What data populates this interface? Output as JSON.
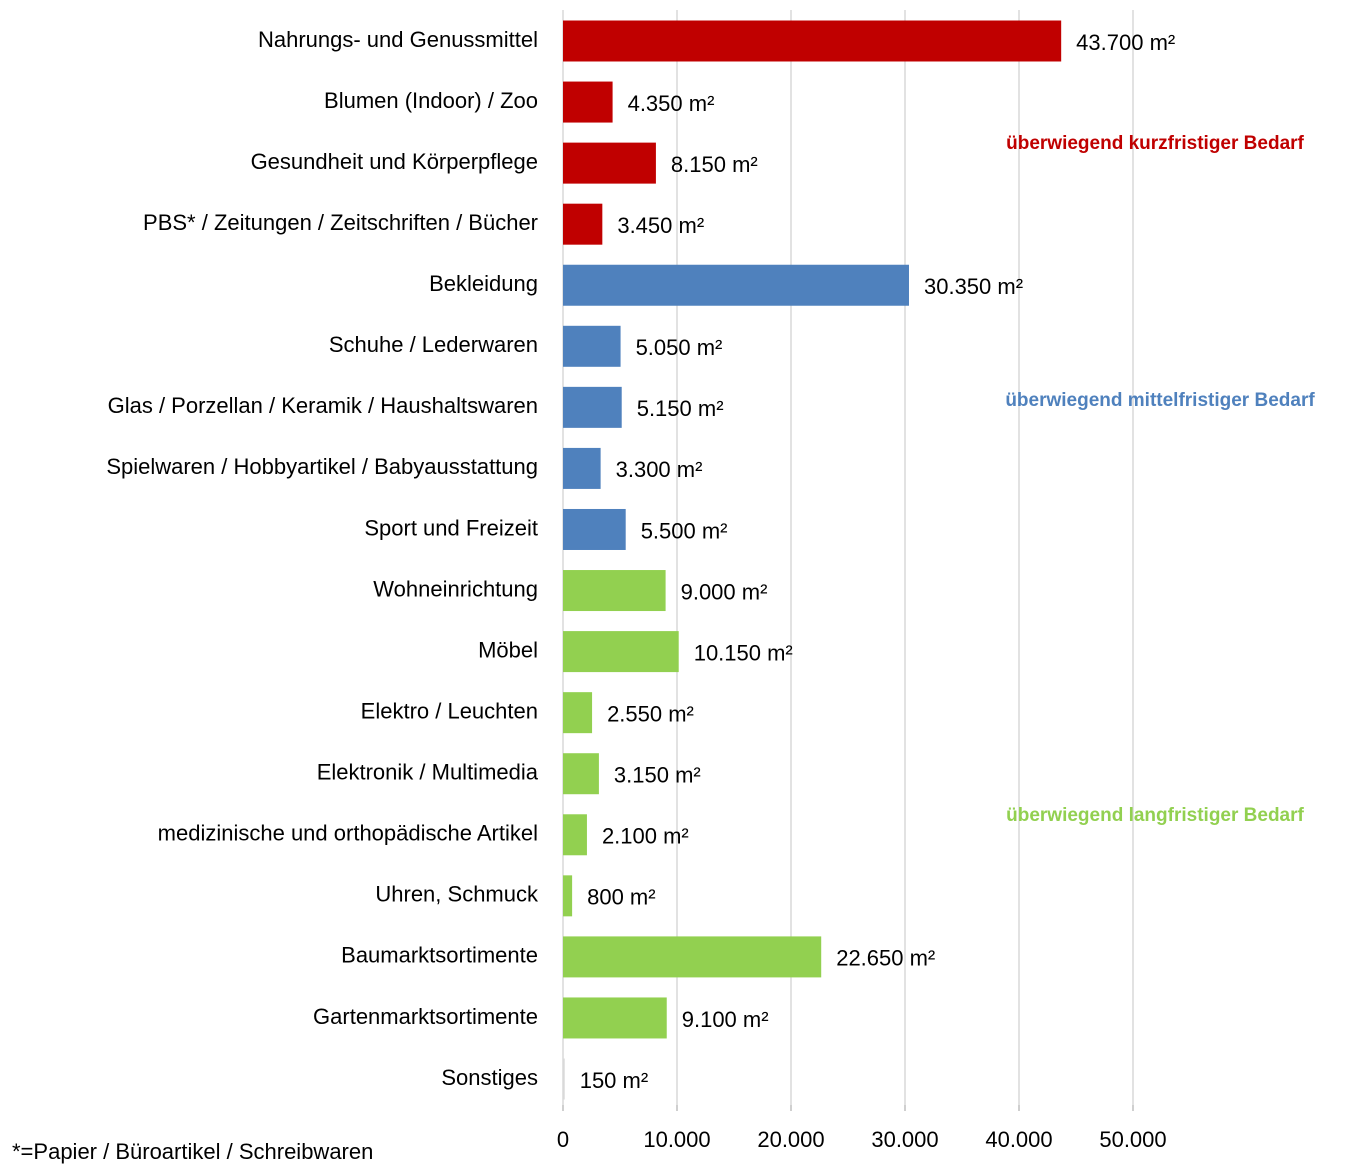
{
  "chart_data": {
    "type": "hbar",
    "categories": [
      "Nahrungs- und Genussmittel",
      "Blumen (Indoor) / Zoo",
      "Gesundheit und Körperpflege",
      "PBS* / Zeitungen / Zeitschriften / Bücher",
      "Bekleidung",
      "Schuhe / Lederwaren",
      "Glas / Porzellan / Keramik / Haushaltswaren",
      "Spielwaren / Hobbyartikel / Babyausstattung",
      "Sport und Freizeit",
      "Wohneinrichtung",
      "Möbel",
      "Elektro / Leuchten",
      "Elektronik / Multimedia",
      "medizinische und orthopädische Artikel",
      "Uhren, Schmuck",
      "Baumarktsortimente",
      "Gartenmarktsortimente",
      "Sonstiges"
    ],
    "values": [
      43700,
      4350,
      8150,
      3450,
      30350,
      5050,
      5150,
      3300,
      5500,
      9000,
      10150,
      2550,
      3150,
      2100,
      800,
      22650,
      9100,
      150
    ],
    "value_labels": [
      "43.700 m²",
      "4.350 m²",
      "8.150 m²",
      "3.450 m²",
      "30.350 m²",
      "5.050 m²",
      "5.150 m²",
      "3.300 m²",
      "5.500 m²",
      "9.000 m²",
      "10.150 m²",
      "2.550 m²",
      "3.150 m²",
      "2.100 m²",
      "800 m²",
      "22.650 m²",
      "9.100 m²",
      "150 m²"
    ],
    "colors": [
      "#c00000",
      "#c00000",
      "#c00000",
      "#c00000",
      "#4f81bd",
      "#4f81bd",
      "#4f81bd",
      "#4f81bd",
      "#4f81bd",
      "#92d050",
      "#92d050",
      "#92d050",
      "#92d050",
      "#92d050",
      "#92d050",
      "#92d050",
      "#92d050",
      "#d9d9d9"
    ],
    "xlim": [
      0,
      50000
    ],
    "xticks": [
      0,
      {
        "value": 10000,
        "label": "10.000"
      },
      {
        "value": 20000,
        "label": "20.000"
      },
      {
        "value": 30000,
        "label": "30.000"
      },
      {
        "value": 40000,
        "label": "40.000"
      },
      {
        "value": 50000,
        "label": "50.000"
      }
    ],
    "grid": true,
    "annotations": [
      {
        "text": "überwiegend kurzfristiger Bedarf",
        "color": "#c00000"
      },
      {
        "text": "überwiegend mittelfristiger Bedarf",
        "color": "#4f81bd"
      },
      {
        "text": "überwiegend langfristiger Bedarf",
        "color": "#92d050"
      }
    ],
    "footnote": "*=Papier / Büroartikel / Schreibwaren"
  }
}
